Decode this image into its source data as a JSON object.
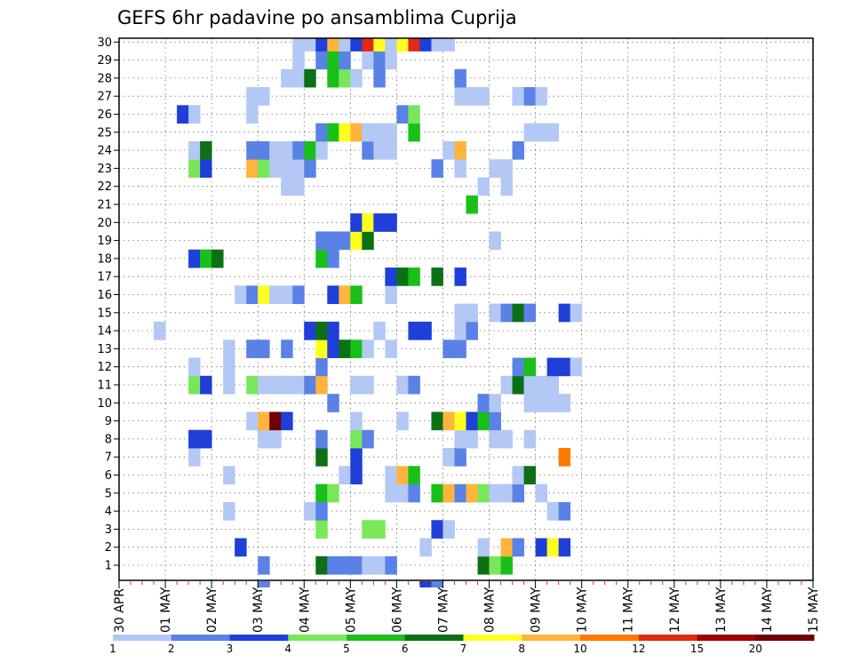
{
  "chart_data": {
    "type": "heatmap",
    "title": "GEFS 6hr padavine po ansamblima Cuprija",
    "x_tick_labels": [
      "30 APR",
      "01 MAY",
      "02 MAY",
      "03 MAY",
      "04 MAY",
      "05 MAY",
      "06 MAY",
      "07 MAY",
      "08 MAY",
      "09 MAY",
      "10 MAY",
      "11 MAY",
      "12 MAY",
      "13 MAY",
      "14 MAY",
      "15 MAY"
    ],
    "x_step": "6hr",
    "y_tick_labels": [
      "1",
      "2",
      "3",
      "4",
      "5",
      "6",
      "7",
      "8",
      "9",
      "10",
      "11",
      "12",
      "13",
      "14",
      "15",
      "16",
      "17",
      "18",
      "19",
      "20",
      "21",
      "22",
      "23",
      "24",
      "25",
      "26",
      "27",
      "28",
      "29",
      "30"
    ],
    "ylim": [
      1,
      30
    ],
    "grid": true,
    "colorbar": {
      "position": "bottom",
      "tick_labels": [
        "1",
        "2",
        "3",
        "4",
        "5",
        "6",
        "7",
        "8",
        "10",
        "12",
        "15",
        "20"
      ],
      "colors": [
        "#b3c8f5",
        "#5a82e6",
        "#1f3fd8",
        "#78e85a",
        "#18c018",
        "#0c7014",
        "#ffff1e",
        "#ffb43c",
        "#ff7a00",
        "#e02a14",
        "#a00000",
        "#6e0000"
      ]
    },
    "cells_format": "[member, step_index (0 = 30 APR 00Z, 4 steps per day), color_class (1-12, index into colorbar.colors)]",
    "cells": [
      [
        1,
        12,
        2
      ],
      [
        1,
        17,
        6
      ],
      [
        1,
        18,
        2
      ],
      [
        1,
        19,
        2
      ],
      [
        1,
        20,
        2
      ],
      [
        1,
        21,
        1
      ],
      [
        1,
        22,
        1
      ],
      [
        1,
        23,
        2
      ],
      [
        1,
        31,
        6
      ],
      [
        1,
        32,
        4
      ],
      [
        1,
        33,
        5
      ],
      [
        2,
        10,
        3
      ],
      [
        2,
        26,
        1
      ],
      [
        2,
        31,
        1
      ],
      [
        2,
        33,
        8
      ],
      [
        2,
        34,
        2
      ],
      [
        2,
        36,
        3
      ],
      [
        2,
        37,
        7
      ],
      [
        2,
        38,
        3
      ],
      [
        3,
        17,
        4
      ],
      [
        3,
        21,
        4
      ],
      [
        3,
        22,
        4
      ],
      [
        3,
        27,
        3
      ],
      [
        3,
        28,
        1
      ],
      [
        4,
        9,
        1
      ],
      [
        4,
        16,
        1
      ],
      [
        4,
        17,
        2
      ],
      [
        4,
        37,
        1
      ],
      [
        4,
        38,
        2
      ],
      [
        5,
        17,
        5
      ],
      [
        5,
        18,
        4
      ],
      [
        5,
        23,
        1
      ],
      [
        5,
        24,
        1
      ],
      [
        5,
        25,
        2
      ],
      [
        5,
        27,
        5
      ],
      [
        5,
        28,
        8
      ],
      [
        5,
        29,
        2
      ],
      [
        5,
        30,
        8
      ],
      [
        5,
        31,
        4
      ],
      [
        5,
        32,
        1
      ],
      [
        5,
        33,
        1
      ],
      [
        5,
        34,
        2
      ],
      [
        5,
        36,
        1
      ],
      [
        6,
        9,
        1
      ],
      [
        6,
        19,
        1
      ],
      [
        6,
        20,
        3
      ],
      [
        6,
        23,
        1
      ],
      [
        6,
        24,
        8
      ],
      [
        6,
        25,
        5
      ],
      [
        6,
        34,
        1
      ],
      [
        6,
        35,
        6
      ],
      [
        7,
        6,
        1
      ],
      [
        7,
        17,
        6
      ],
      [
        7,
        20,
        3
      ],
      [
        7,
        28,
        1
      ],
      [
        7,
        29,
        2
      ],
      [
        7,
        38,
        9
      ],
      [
        8,
        6,
        3
      ],
      [
        8,
        7,
        3
      ],
      [
        8,
        12,
        1
      ],
      [
        8,
        13,
        1
      ],
      [
        8,
        17,
        2
      ],
      [
        8,
        20,
        4
      ],
      [
        8,
        21,
        2
      ],
      [
        8,
        29,
        1
      ],
      [
        8,
        30,
        1
      ],
      [
        8,
        32,
        1
      ],
      [
        8,
        33,
        1
      ],
      [
        8,
        35,
        1
      ],
      [
        9,
        11,
        1
      ],
      [
        9,
        12,
        8
      ],
      [
        9,
        13,
        12
      ],
      [
        9,
        14,
        3
      ],
      [
        9,
        20,
        1
      ],
      [
        9,
        24,
        1
      ],
      [
        9,
        27,
        6
      ],
      [
        9,
        28,
        8
      ],
      [
        9,
        29,
        7
      ],
      [
        9,
        30,
        3
      ],
      [
        9,
        31,
        5
      ],
      [
        9,
        32,
        2
      ],
      [
        10,
        18,
        2
      ],
      [
        10,
        31,
        2
      ],
      [
        10,
        32,
        1
      ],
      [
        10,
        35,
        1
      ],
      [
        10,
        36,
        1
      ],
      [
        10,
        37,
        1
      ],
      [
        10,
        38,
        1
      ],
      [
        11,
        6,
        4
      ],
      [
        11,
        7,
        3
      ],
      [
        11,
        9,
        1
      ],
      [
        11,
        11,
        4
      ],
      [
        11,
        12,
        1
      ],
      [
        11,
        13,
        1
      ],
      [
        11,
        14,
        1
      ],
      [
        11,
        15,
        1
      ],
      [
        11,
        16,
        2
      ],
      [
        11,
        17,
        8
      ],
      [
        11,
        20,
        1
      ],
      [
        11,
        21,
        1
      ],
      [
        11,
        24,
        1
      ],
      [
        11,
        25,
        2
      ],
      [
        11,
        33,
        1
      ],
      [
        11,
        34,
        6
      ],
      [
        11,
        35,
        1
      ],
      [
        11,
        36,
        1
      ],
      [
        11,
        37,
        1
      ],
      [
        12,
        6,
        1
      ],
      [
        12,
        9,
        1
      ],
      [
        12,
        17,
        2
      ],
      [
        12,
        34,
        2
      ],
      [
        12,
        35,
        5
      ],
      [
        12,
        37,
        3
      ],
      [
        12,
        38,
        3
      ],
      [
        12,
        39,
        1
      ],
      [
        13,
        9,
        1
      ],
      [
        13,
        11,
        2
      ],
      [
        13,
        12,
        2
      ],
      [
        13,
        14,
        2
      ],
      [
        13,
        17,
        7
      ],
      [
        13,
        18,
        3
      ],
      [
        13,
        19,
        6
      ],
      [
        13,
        20,
        5
      ],
      [
        13,
        21,
        1
      ],
      [
        13,
        23,
        1
      ],
      [
        13,
        28,
        2
      ],
      [
        13,
        29,
        2
      ],
      [
        14,
        3,
        1
      ],
      [
        14,
        16,
        3
      ],
      [
        14,
        17,
        6
      ],
      [
        14,
        18,
        3
      ],
      [
        14,
        22,
        1
      ],
      [
        14,
        25,
        3
      ],
      [
        14,
        26,
        3
      ],
      [
        14,
        29,
        1
      ],
      [
        14,
        30,
        2
      ],
      [
        15,
        29,
        1
      ],
      [
        15,
        30,
        1
      ],
      [
        15,
        32,
        1
      ],
      [
        15,
        33,
        2
      ],
      [
        15,
        34,
        6
      ],
      [
        15,
        35,
        2
      ],
      [
        15,
        38,
        3
      ],
      [
        15,
        39,
        1
      ],
      [
        16,
        10,
        1
      ],
      [
        16,
        11,
        2
      ],
      [
        16,
        12,
        7
      ],
      [
        16,
        13,
        1
      ],
      [
        16,
        14,
        1
      ],
      [
        16,
        15,
        2
      ],
      [
        16,
        18,
        3
      ],
      [
        16,
        19,
        8
      ],
      [
        16,
        20,
        5
      ],
      [
        16,
        23,
        1
      ],
      [
        17,
        23,
        3
      ],
      [
        17,
        24,
        6
      ],
      [
        17,
        25,
        5
      ],
      [
        17,
        27,
        6
      ],
      [
        17,
        29,
        3
      ],
      [
        18,
        6,
        3
      ],
      [
        18,
        7,
        5
      ],
      [
        18,
        8,
        6
      ],
      [
        18,
        17,
        5
      ],
      [
        18,
        18,
        2
      ],
      [
        19,
        17,
        2
      ],
      [
        19,
        18,
        2
      ],
      [
        19,
        19,
        2
      ],
      [
        19,
        20,
        7
      ],
      [
        19,
        21,
        6
      ],
      [
        19,
        32,
        1
      ],
      [
        20,
        20,
        3
      ],
      [
        20,
        21,
        7
      ],
      [
        20,
        22,
        3
      ],
      [
        20,
        23,
        3
      ],
      [
        21,
        30,
        5
      ],
      [
        22,
        14,
        1
      ],
      [
        22,
        15,
        1
      ],
      [
        22,
        31,
        1
      ],
      [
        22,
        33,
        1
      ],
      [
        23,
        6,
        4
      ],
      [
        23,
        7,
        3
      ],
      [
        23,
        11,
        8
      ],
      [
        23,
        12,
        4
      ],
      [
        23,
        13,
        1
      ],
      [
        23,
        14,
        1
      ],
      [
        23,
        15,
        1
      ],
      [
        23,
        16,
        2
      ],
      [
        23,
        27,
        2
      ],
      [
        23,
        29,
        1
      ],
      [
        23,
        32,
        1
      ],
      [
        23,
        33,
        1
      ],
      [
        24,
        6,
        1
      ],
      [
        24,
        7,
        6
      ],
      [
        24,
        11,
        2
      ],
      [
        24,
        12,
        2
      ],
      [
        24,
        13,
        1
      ],
      [
        24,
        14,
        1
      ],
      [
        24,
        15,
        2
      ],
      [
        24,
        16,
        5
      ],
      [
        24,
        17,
        1
      ],
      [
        24,
        21,
        2
      ],
      [
        24,
        22,
        1
      ],
      [
        24,
        23,
        1
      ],
      [
        24,
        28,
        1
      ],
      [
        24,
        29,
        8
      ],
      [
        24,
        34,
        2
      ],
      [
        25,
        17,
        2
      ],
      [
        25,
        18,
        5
      ],
      [
        25,
        19,
        7
      ],
      [
        25,
        20,
        8
      ],
      [
        25,
        21,
        1
      ],
      [
        25,
        22,
        1
      ],
      [
        25,
        23,
        1
      ],
      [
        25,
        25,
        5
      ],
      [
        25,
        35,
        1
      ],
      [
        25,
        36,
        1
      ],
      [
        25,
        37,
        1
      ],
      [
        26,
        5,
        3
      ],
      [
        26,
        6,
        1
      ],
      [
        26,
        11,
        1
      ],
      [
        26,
        24,
        2
      ],
      [
        26,
        25,
        4
      ],
      [
        27,
        11,
        1
      ],
      [
        27,
        12,
        1
      ],
      [
        27,
        29,
        1
      ],
      [
        27,
        30,
        1
      ],
      [
        27,
        31,
        1
      ],
      [
        27,
        34,
        1
      ],
      [
        27,
        35,
        2
      ],
      [
        27,
        36,
        1
      ],
      [
        28,
        14,
        1
      ],
      [
        28,
        15,
        1
      ],
      [
        28,
        16,
        6
      ],
      [
        28,
        18,
        5
      ],
      [
        28,
        19,
        4
      ],
      [
        28,
        20,
        1
      ],
      [
        28,
        22,
        2
      ],
      [
        28,
        29,
        2
      ],
      [
        29,
        15,
        1
      ],
      [
        29,
        17,
        2
      ],
      [
        29,
        18,
        5
      ],
      [
        29,
        19,
        2
      ],
      [
        29,
        21,
        1
      ],
      [
        29,
        22,
        2
      ],
      [
        29,
        23,
        1
      ],
      [
        30,
        15,
        1
      ],
      [
        30,
        16,
        1
      ],
      [
        30,
        17,
        3
      ],
      [
        30,
        18,
        8
      ],
      [
        30,
        19,
        1
      ],
      [
        30,
        20,
        3
      ],
      [
        30,
        21,
        10
      ],
      [
        30,
        22,
        7
      ],
      [
        30,
        23,
        1
      ],
      [
        30,
        24,
        7
      ],
      [
        30,
        25,
        10
      ],
      [
        30,
        26,
        3
      ],
      [
        30,
        27,
        1
      ],
      [
        30,
        28,
        1
      ]
    ],
    "overflow_cells": [
      [
        0,
        12,
        2
      ],
      [
        0,
        26,
        3
      ],
      [
        0,
        27,
        2
      ]
    ]
  }
}
